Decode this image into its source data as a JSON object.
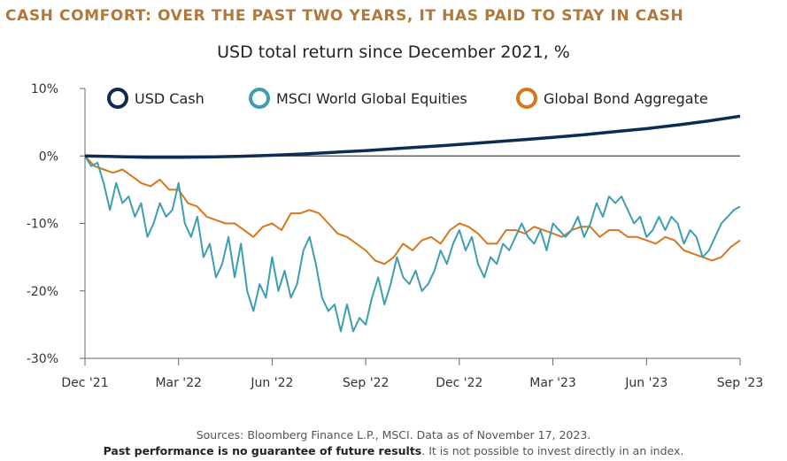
{
  "title": "CASH COMFORT: OVER THE PAST TWO YEARS, IT HAS PAID TO STAY IN CASH",
  "subtitle": "USD total return since December 2021, %",
  "footer": {
    "sources": "Sources: Bloomberg Finance L.P., MSCI. Data as of November 17, 2023.",
    "disclaimer_bold": "Past performance is no guarantee of future results",
    "disclaimer_rest": ". It is not possible to invest directly in an index."
  },
  "colors": {
    "cash": "#0d2c54",
    "equities": "#3d9eb0",
    "bonds": "#d9761c",
    "title": "#b0783a"
  },
  "chart_data": {
    "type": "line",
    "title": "USD total return since December 2021, %",
    "ylim": [
      -30,
      10
    ],
    "yticks": [
      10,
      0,
      -10,
      -20,
      -30
    ],
    "ytick_labels": [
      "10%",
      "0%",
      "-10%",
      "-20%",
      "-30%"
    ],
    "xlim": [
      0,
      21
    ],
    "xticks": [
      0,
      3,
      6,
      9,
      12,
      15,
      18,
      21
    ],
    "xtick_labels": [
      "Dec '21",
      "Mar '22",
      "Jun '22",
      "Sep '22",
      "Dec '22",
      "Mar '23",
      "Jun '23",
      "Sep '23"
    ],
    "legend_position": "top",
    "grid": false,
    "series": [
      {
        "name": "USD Cash",
        "color": "#0d2c54",
        "x": [
          0,
          1,
          2,
          3,
          4,
          5,
          6,
          7,
          8,
          9,
          10,
          11,
          12,
          13,
          14,
          15,
          16,
          17,
          18,
          19,
          20,
          21
        ],
        "values": [
          0,
          -0.1,
          -0.2,
          -0.2,
          -0.15,
          -0.05,
          0.1,
          0.3,
          0.55,
          0.8,
          1.1,
          1.4,
          1.7,
          2.05,
          2.4,
          2.75,
          3.15,
          3.6,
          4.05,
          4.6,
          5.2,
          5.9
        ]
      },
      {
        "name": "MSCI World Global Equities",
        "color": "#3d9eb0",
        "x": [
          0,
          0.2,
          0.4,
          0.6,
          0.8,
          1.0,
          1.2,
          1.4,
          1.6,
          1.8,
          2.0,
          2.2,
          2.4,
          2.6,
          2.8,
          3.0,
          3.2,
          3.4,
          3.6,
          3.8,
          4.0,
          4.2,
          4.4,
          4.6,
          4.8,
          5.0,
          5.2,
          5.4,
          5.6,
          5.8,
          6.0,
          6.2,
          6.4,
          6.6,
          6.8,
          7.0,
          7.2,
          7.4,
          7.6,
          7.8,
          8.0,
          8.2,
          8.4,
          8.6,
          8.8,
          9.0,
          9.2,
          9.4,
          9.6,
          9.8,
          10.0,
          10.2,
          10.4,
          10.6,
          10.8,
          11.0,
          11.2,
          11.4,
          11.6,
          11.8,
          12.0,
          12.2,
          12.4,
          12.6,
          12.8,
          13.0,
          13.2,
          13.4,
          13.6,
          13.8,
          14.0,
          14.2,
          14.4,
          14.6,
          14.8,
          15.0,
          15.2,
          15.4,
          15.6,
          15.8,
          16.0,
          16.2,
          16.4,
          16.6,
          16.8,
          17.0,
          17.2,
          17.4,
          17.6,
          17.8,
          18.0,
          18.2,
          18.4,
          18.6,
          18.8,
          19.0,
          19.2,
          19.4,
          19.6,
          19.8,
          20.0,
          20.2,
          20.4,
          20.6,
          20.8,
          21.0
        ],
        "values": [
          0,
          -1.5,
          -1,
          -4,
          -8,
          -4,
          -7,
          -6,
          -9,
          -7,
          -12,
          -10,
          -7,
          -9,
          -8,
          -4,
          -10,
          -12,
          -9,
          -15,
          -13,
          -18,
          -16,
          -12,
          -18,
          -13,
          -20,
          -23,
          -19,
          -21,
          -15,
          -20,
          -17,
          -21,
          -19,
          -14,
          -12,
          -16,
          -21,
          -23,
          -22,
          -26,
          -22,
          -26,
          -24,
          -25,
          -21,
          -18,
          -22,
          -19,
          -15,
          -18,
          -19,
          -17,
          -20,
          -19,
          -17,
          -14,
          -16,
          -13,
          -11,
          -14,
          -12,
          -16,
          -18,
          -15,
          -16,
          -13,
          -14,
          -12,
          -10,
          -12,
          -13,
          -11,
          -14,
          -10,
          -11,
          -12,
          -11,
          -9,
          -12,
          -10,
          -7,
          -9,
          -6,
          -7,
          -6,
          -8,
          -10,
          -9,
          -12,
          -11,
          -9,
          -11,
          -9,
          -10,
          -13,
          -11,
          -12,
          -15,
          -14,
          -12,
          -10,
          -9,
          -8,
          -7.5
        ]
      },
      {
        "name": "Global Bond Aggregate",
        "color": "#d9761c",
        "x": [
          0,
          0.3,
          0.6,
          0.9,
          1.2,
          1.5,
          1.8,
          2.1,
          2.4,
          2.7,
          3.0,
          3.3,
          3.6,
          3.9,
          4.2,
          4.5,
          4.8,
          5.1,
          5.4,
          5.7,
          6.0,
          6.3,
          6.6,
          6.9,
          7.2,
          7.5,
          7.8,
          8.1,
          8.4,
          8.7,
          9.0,
          9.3,
          9.6,
          9.9,
          10.2,
          10.5,
          10.8,
          11.1,
          11.4,
          11.7,
          12.0,
          12.3,
          12.6,
          12.9,
          13.2,
          13.5,
          13.8,
          14.1,
          14.4,
          14.7,
          15.0,
          15.3,
          15.6,
          15.9,
          16.2,
          16.5,
          16.8,
          17.1,
          17.4,
          17.7,
          18.0,
          18.3,
          18.6,
          18.9,
          19.2,
          19.5,
          19.8,
          20.1,
          20.4,
          20.7,
          21.0
        ],
        "values": [
          0,
          -1.5,
          -2,
          -2.5,
          -2,
          -3,
          -4,
          -4.5,
          -3.5,
          -5,
          -5,
          -7,
          -7.5,
          -9,
          -9.5,
          -10,
          -10,
          -11,
          -12,
          -10.5,
          -10,
          -11,
          -8.5,
          -8.5,
          -8,
          -8.5,
          -10,
          -11.5,
          -12,
          -13,
          -14,
          -15.5,
          -16,
          -15,
          -13,
          -14,
          -12.5,
          -12,
          -13,
          -11,
          -10,
          -10.5,
          -11.5,
          -13,
          -13,
          -11,
          -11,
          -11.5,
          -10.5,
          -11,
          -11.5,
          -12,
          -11,
          -10.5,
          -10.5,
          -12,
          -11,
          -11,
          -12,
          -12,
          -12.5,
          -13,
          -12,
          -12.5,
          -14,
          -14.5,
          -15,
          -15.5,
          -15,
          -13.5,
          -12.5
        ]
      }
    ]
  }
}
